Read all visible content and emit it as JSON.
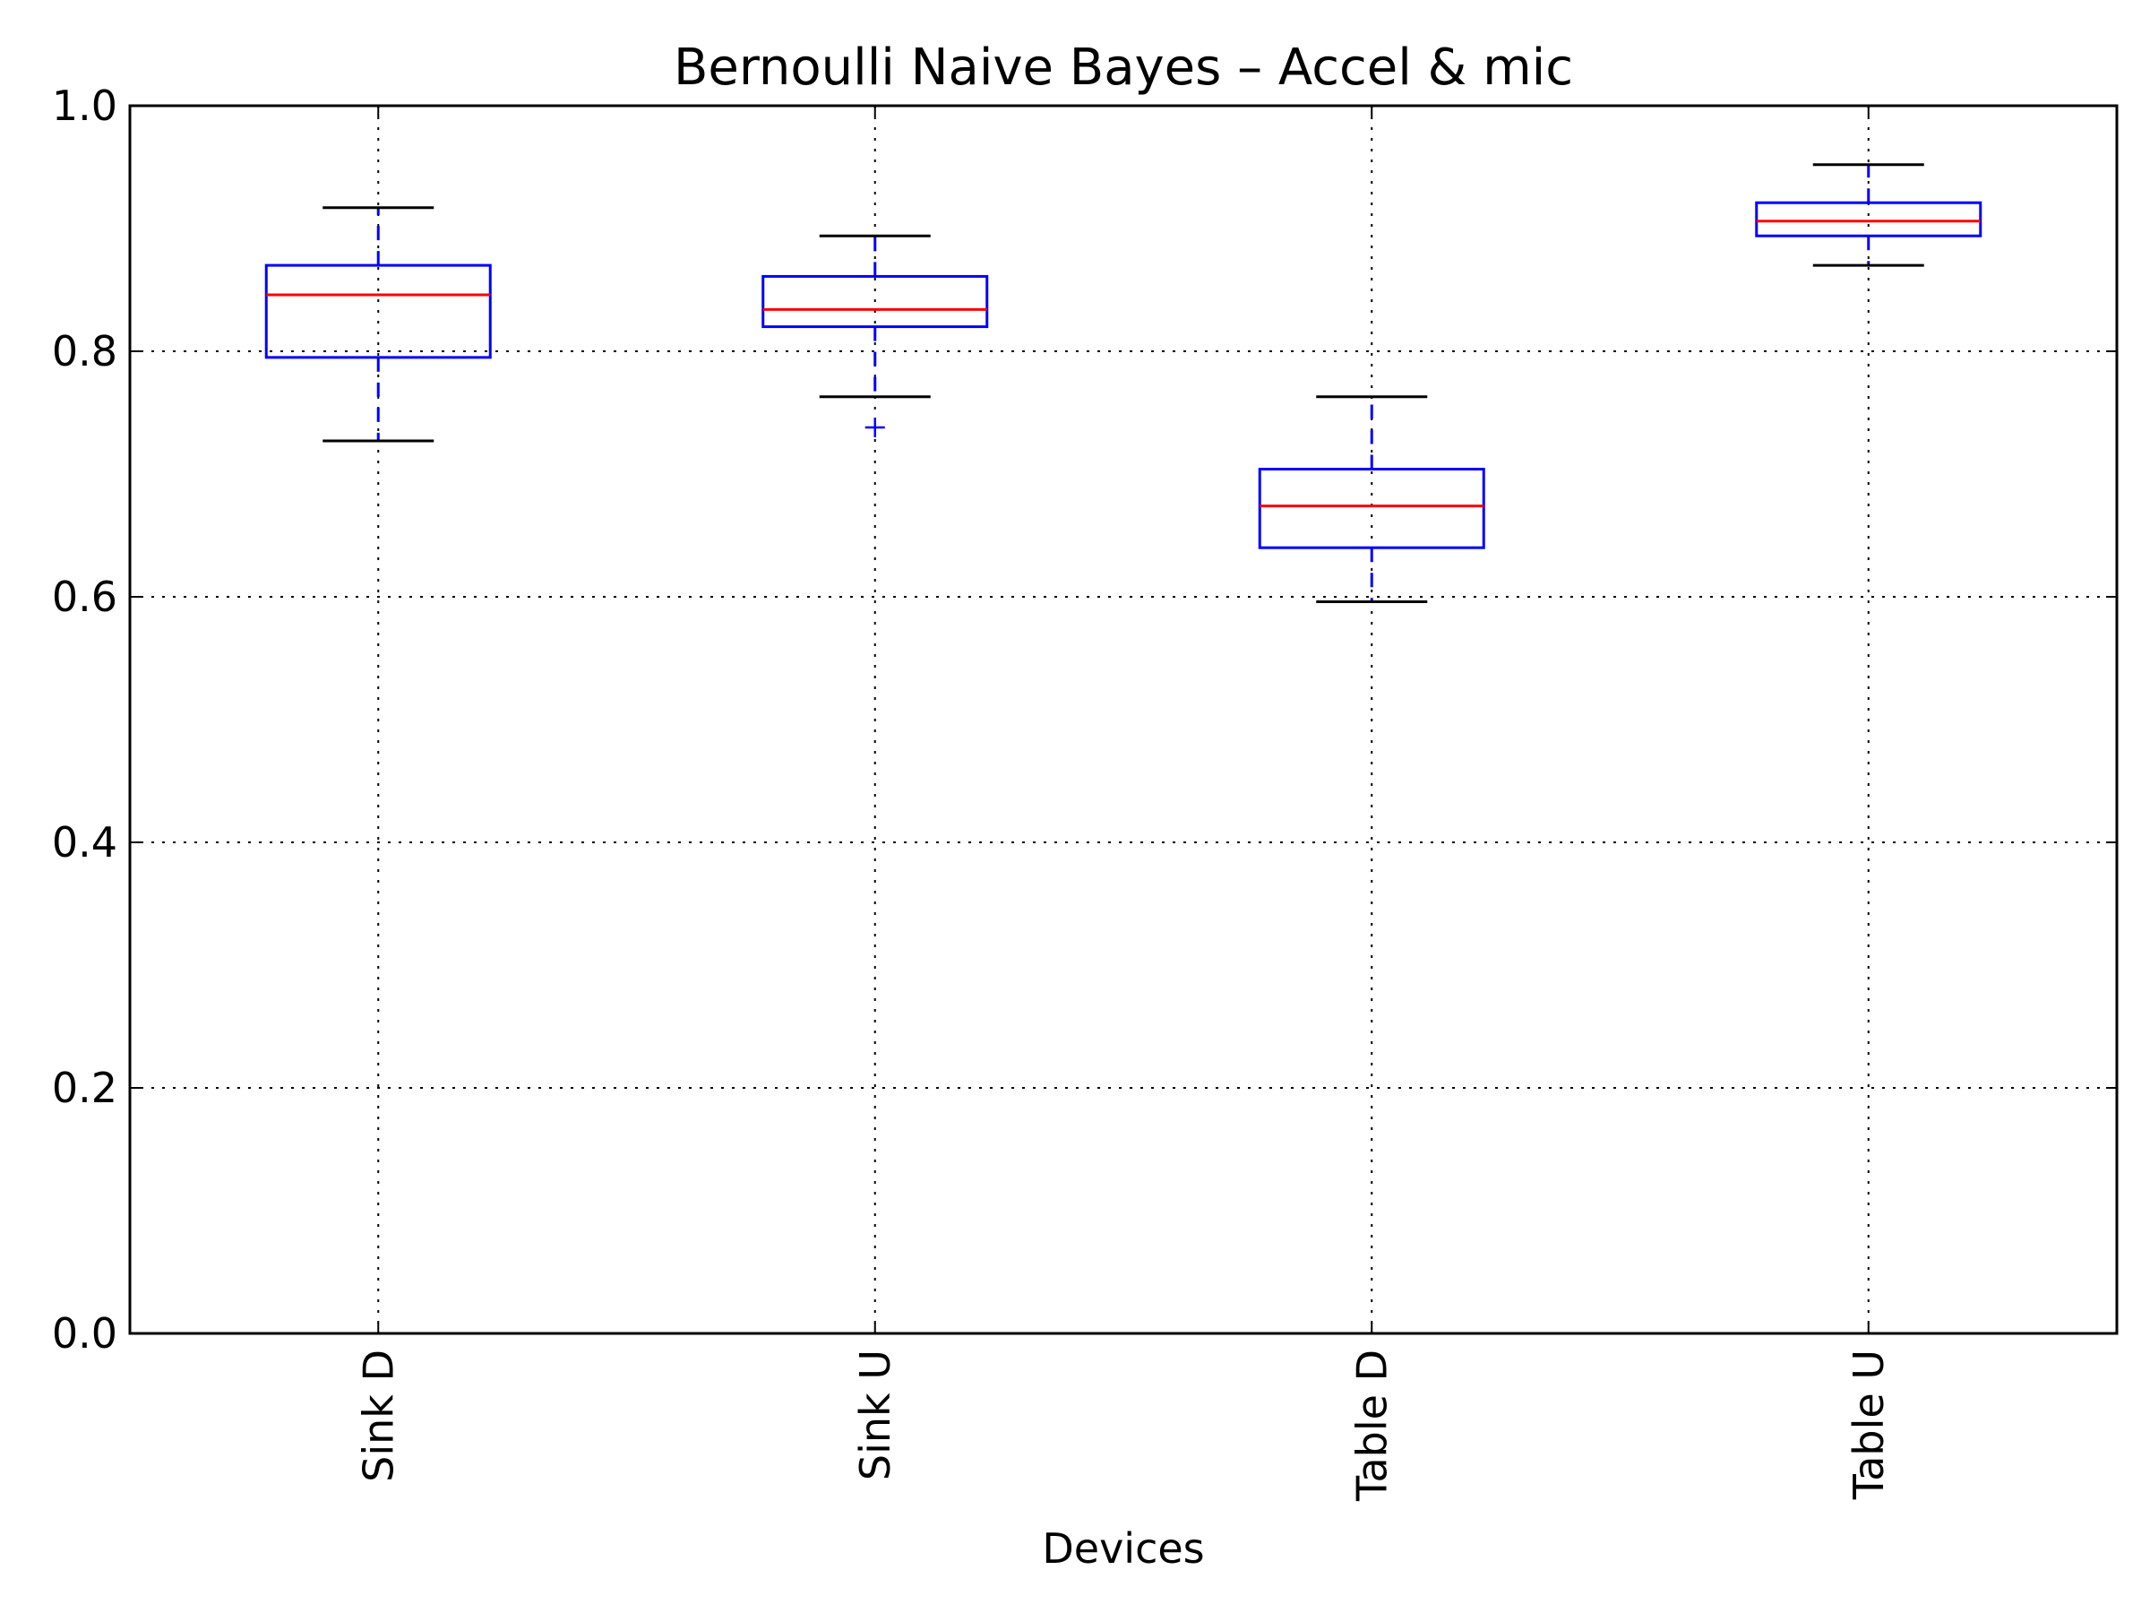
{
  "chart_data": {
    "type": "box",
    "title": "Bernoulli Naive Bayes – Accel & mic",
    "xlabel": "Devices",
    "ylabel": "",
    "ylim": [
      0.0,
      1.0
    ],
    "yticks": [
      "0.0",
      "0.2",
      "0.4",
      "0.6",
      "0.8",
      "1.0"
    ],
    "grid": true,
    "categories": [
      "Sink D",
      "Sink U",
      "Table D",
      "Table U"
    ],
    "boxes": [
      {
        "category": "Sink D",
        "whisker_low": 0.727,
        "q1": 0.795,
        "median": 0.846,
        "q3": 0.87,
        "whisker_high": 0.917,
        "outliers": []
      },
      {
        "category": "Sink U",
        "whisker_low": 0.763,
        "q1": 0.82,
        "median": 0.834,
        "q3": 0.861,
        "whisker_high": 0.894,
        "outliers": [
          0.738
        ]
      },
      {
        "category": "Table D",
        "whisker_low": 0.596,
        "q1": 0.64,
        "median": 0.674,
        "q3": 0.704,
        "whisker_high": 0.763,
        "outliers": []
      },
      {
        "category": "Table U",
        "whisker_low": 0.87,
        "q1": 0.894,
        "median": 0.906,
        "q3": 0.921,
        "whisker_high": 0.952,
        "outliers": []
      }
    ],
    "colors": {
      "box": "#0000ff",
      "median": "#ff0000",
      "whisker_cap": "#000000",
      "whisker": "#0000ff",
      "outlier": "#0000ff"
    }
  }
}
